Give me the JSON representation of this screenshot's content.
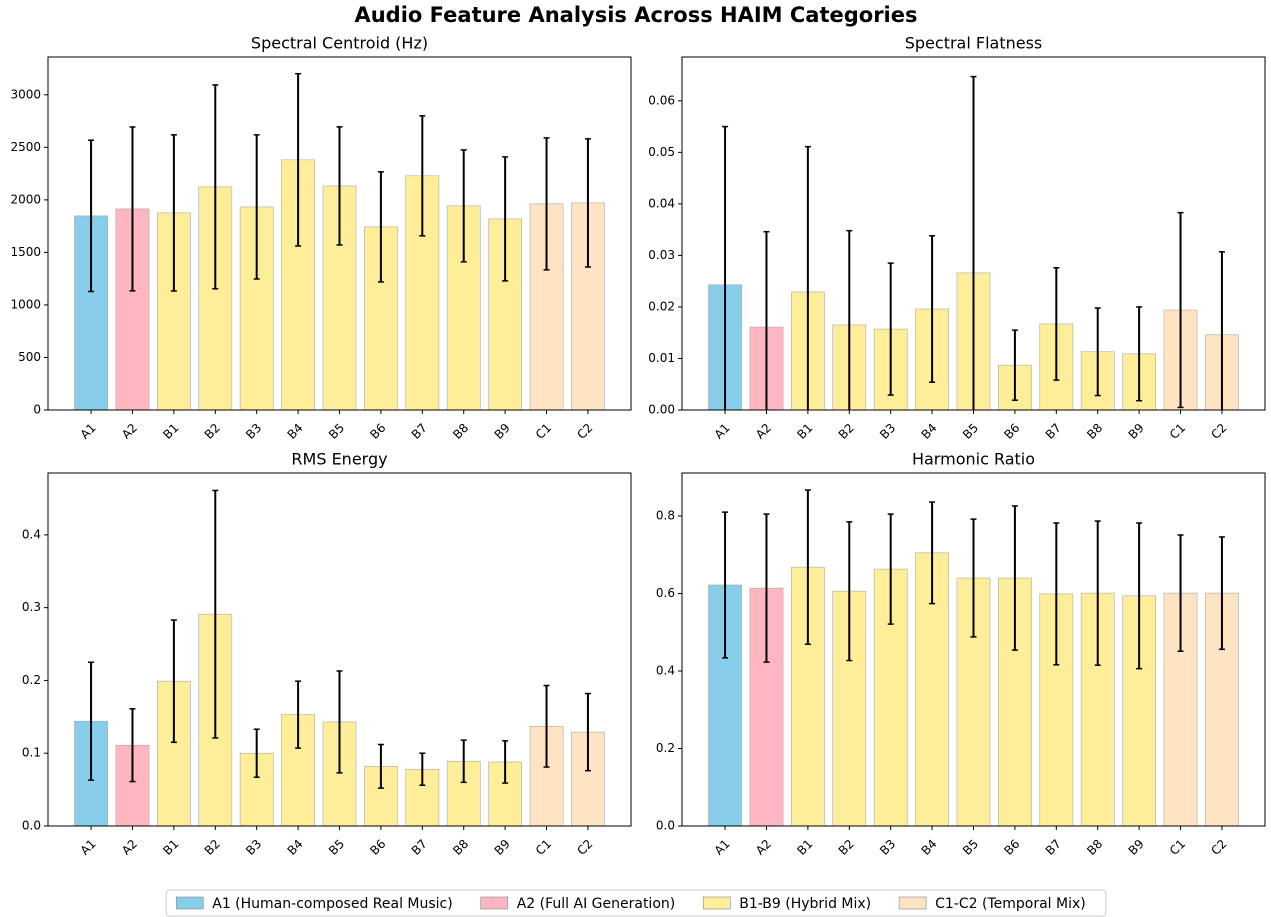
{
  "title": "Audio Feature Analysis Across HAIM Categories",
  "legend": [
    {
      "name": "A1 (Human-composed Real Music)",
      "color": "#87CEEB"
    },
    {
      "name": "A2 (Full AI Generation)",
      "color": "#FFB6C1"
    },
    {
      "name": "B1-B9 (Hybrid Mix)",
      "color": "#FFEE99"
    },
    {
      "name": "C1-C2 (Temporal Mix)",
      "color": "#FFE4C4"
    }
  ],
  "chart_data": [
    {
      "type": "bar",
      "title": "Spectral Centroid (Hz)",
      "categories": [
        "A1",
        "A2",
        "B1",
        "B2",
        "B3",
        "B4",
        "B5",
        "B6",
        "B7",
        "B8",
        "B9",
        "C1",
        "C2"
      ],
      "values": [
        1848,
        1914,
        1876,
        2124,
        1933,
        2381,
        2133,
        1743,
        2229,
        1943,
        1819,
        1962,
        1971
      ],
      "errors": [
        720,
        780,
        743,
        970,
        686,
        820,
        562,
        524,
        571,
        533,
        590,
        628,
        610
      ],
      "colors": [
        "#87CEEB",
        "#FFB6C1",
        "#FFEE99",
        "#FFEE99",
        "#FFEE99",
        "#FFEE99",
        "#FFEE99",
        "#FFEE99",
        "#FFEE99",
        "#FFEE99",
        "#FFEE99",
        "#FFE4C4",
        "#FFE4C4"
      ],
      "ylim": [
        0,
        3360
      ],
      "yticks": [
        0,
        500,
        1000,
        1500,
        2000,
        2500,
        3000
      ]
    },
    {
      "type": "bar",
      "title": "Spectral Flatness",
      "categories": [
        "A1",
        "A2",
        "B1",
        "B2",
        "B3",
        "B4",
        "B5",
        "B6",
        "B7",
        "B8",
        "B9",
        "C1",
        "C2"
      ],
      "values": [
        0.0243,
        0.0161,
        0.0229,
        0.0165,
        0.0157,
        0.0196,
        0.0266,
        0.0087,
        0.0167,
        0.0113,
        0.0109,
        0.0194,
        0.0146
      ],
      "errors": [
        0.0307,
        0.0185,
        0.0282,
        0.0183,
        0.0128,
        0.0142,
        0.0381,
        0.0068,
        0.0109,
        0.0085,
        0.0091,
        0.0189,
        0.0161
      ],
      "colors": [
        "#87CEEB",
        "#FFB6C1",
        "#FFEE99",
        "#FFEE99",
        "#FFEE99",
        "#FFEE99",
        "#FFEE99",
        "#FFEE99",
        "#FFEE99",
        "#FFEE99",
        "#FFEE99",
        "#FFE4C4",
        "#FFE4C4"
      ],
      "ylim": [
        0,
        0.0685
      ],
      "yticks": [
        {
          "value": 0,
          "label": "0.00"
        },
        {
          "value": 0.01,
          "label": "0.01"
        },
        {
          "value": 0.02,
          "label": "0.02"
        },
        {
          "value": 0.03,
          "label": "0.03"
        },
        {
          "value": 0.04,
          "label": "0.04"
        },
        {
          "value": 0.05,
          "label": "0.05"
        },
        {
          "value": 0.06,
          "label": "0.06"
        }
      ]
    },
    {
      "type": "bar",
      "title": "RMS Energy",
      "categories": [
        "A1",
        "A2",
        "B1",
        "B2",
        "B3",
        "B4",
        "B5",
        "B6",
        "B7",
        "B8",
        "B9",
        "C1",
        "C2"
      ],
      "values": [
        0.144,
        0.111,
        0.199,
        0.291,
        0.1,
        0.153,
        0.143,
        0.082,
        0.078,
        0.089,
        0.088,
        0.137,
        0.129
      ],
      "errors": [
        0.081,
        0.05,
        0.084,
        0.17,
        0.033,
        0.046,
        0.07,
        0.03,
        0.022,
        0.029,
        0.029,
        0.056,
        0.053
      ],
      "colors": [
        "#87CEEB",
        "#FFB6C1",
        "#FFEE99",
        "#FFEE99",
        "#FFEE99",
        "#FFEE99",
        "#FFEE99",
        "#FFEE99",
        "#FFEE99",
        "#FFEE99",
        "#FFEE99",
        "#FFE4C4",
        "#FFE4C4"
      ],
      "ylim": [
        0,
        0.485
      ],
      "yticks": [
        {
          "value": 0,
          "label": "0.0"
        },
        0.1,
        0.2,
        0.3,
        0.4
      ]
    },
    {
      "type": "bar",
      "title": "Harmonic Ratio",
      "categories": [
        "A1",
        "A2",
        "B1",
        "B2",
        "B3",
        "B4",
        "B5",
        "B6",
        "B7",
        "B8",
        "B9",
        "C1",
        "C2"
      ],
      "values": [
        0.622,
        0.614,
        0.668,
        0.606,
        0.663,
        0.705,
        0.64,
        0.64,
        0.599,
        0.601,
        0.594,
        0.601,
        0.601
      ],
      "errors": [
        0.188,
        0.191,
        0.199,
        0.179,
        0.142,
        0.131,
        0.152,
        0.186,
        0.183,
        0.186,
        0.188,
        0.15,
        0.145
      ],
      "colors": [
        "#87CEEB",
        "#FFB6C1",
        "#FFEE99",
        "#FFEE99",
        "#FFEE99",
        "#FFEE99",
        "#FFEE99",
        "#FFEE99",
        "#FFEE99",
        "#FFEE99",
        "#FFEE99",
        "#FFE4C4",
        "#FFE4C4"
      ],
      "ylim": [
        0,
        0.911
      ],
      "yticks": [
        {
          "value": 0,
          "label": "0.0"
        },
        0.2,
        0.4,
        0.6,
        0.8
      ]
    }
  ]
}
